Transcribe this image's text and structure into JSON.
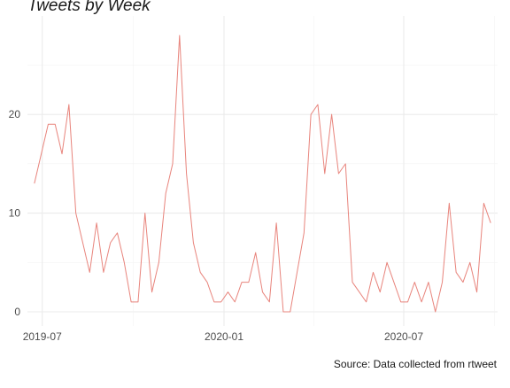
{
  "chart_data": {
    "type": "line",
    "title": "Tweets by Week",
    "caption": "Source: Data collected from rtweet",
    "xlabel": "",
    "ylabel": "",
    "x_axis": {
      "start": "2019-06-16",
      "end": "2020-10-04",
      "ticks": [
        "2019-07-01",
        "2020-01-01",
        "2020-07-01"
      ],
      "tick_labels": [
        "2019-07",
        "2020-01",
        "2020-07"
      ]
    },
    "y_axis": {
      "range": [
        0,
        28
      ],
      "ticks": [
        0,
        10,
        20
      ],
      "tick_labels": [
        "0",
        "10",
        "20"
      ]
    },
    "grid": true,
    "series": [
      {
        "color": "#e8847c",
        "x": [
          "2019-06-23",
          "2019-06-30",
          "2019-07-07",
          "2019-07-14",
          "2019-07-21",
          "2019-07-28",
          "2019-08-04",
          "2019-08-11",
          "2019-08-18",
          "2019-08-25",
          "2019-09-01",
          "2019-09-08",
          "2019-09-15",
          "2019-09-22",
          "2019-09-29",
          "2019-10-06",
          "2019-10-13",
          "2019-10-20",
          "2019-10-27",
          "2019-11-03",
          "2019-11-10",
          "2019-11-17",
          "2019-11-24",
          "2019-12-01",
          "2019-12-08",
          "2019-12-15",
          "2019-12-22",
          "2019-12-29",
          "2020-01-05",
          "2020-01-12",
          "2020-01-19",
          "2020-01-26",
          "2020-02-02",
          "2020-02-09",
          "2020-02-16",
          "2020-02-23",
          "2020-03-01",
          "2020-03-08",
          "2020-03-15",
          "2020-03-22",
          "2020-03-29",
          "2020-04-05",
          "2020-04-12",
          "2020-04-19",
          "2020-04-26",
          "2020-05-03",
          "2020-05-10",
          "2020-05-17",
          "2020-05-24",
          "2020-05-31",
          "2020-06-07",
          "2020-06-14",
          "2020-06-21",
          "2020-06-28",
          "2020-07-05",
          "2020-07-12",
          "2020-07-19",
          "2020-07-26",
          "2020-08-02",
          "2020-08-09",
          "2020-08-16",
          "2020-08-23",
          "2020-08-30",
          "2020-09-06",
          "2020-09-13",
          "2020-09-20",
          "2020-09-27"
        ],
        "values": [
          13,
          16,
          19,
          19,
          16,
          21,
          10,
          7,
          4,
          9,
          4,
          7,
          8,
          5,
          1,
          1,
          10,
          2,
          5,
          12,
          15,
          28,
          14,
          7,
          4,
          3,
          1,
          1,
          2,
          1,
          3,
          3,
          6,
          2,
          1,
          9,
          0,
          0,
          4,
          8,
          20,
          21,
          14,
          20,
          14,
          15,
          3,
          2,
          1,
          4,
          2,
          5,
          3,
          1,
          1,
          3,
          1,
          3,
          0,
          3,
          11,
          4,
          3,
          5,
          2,
          11,
          9
        ]
      }
    ]
  }
}
